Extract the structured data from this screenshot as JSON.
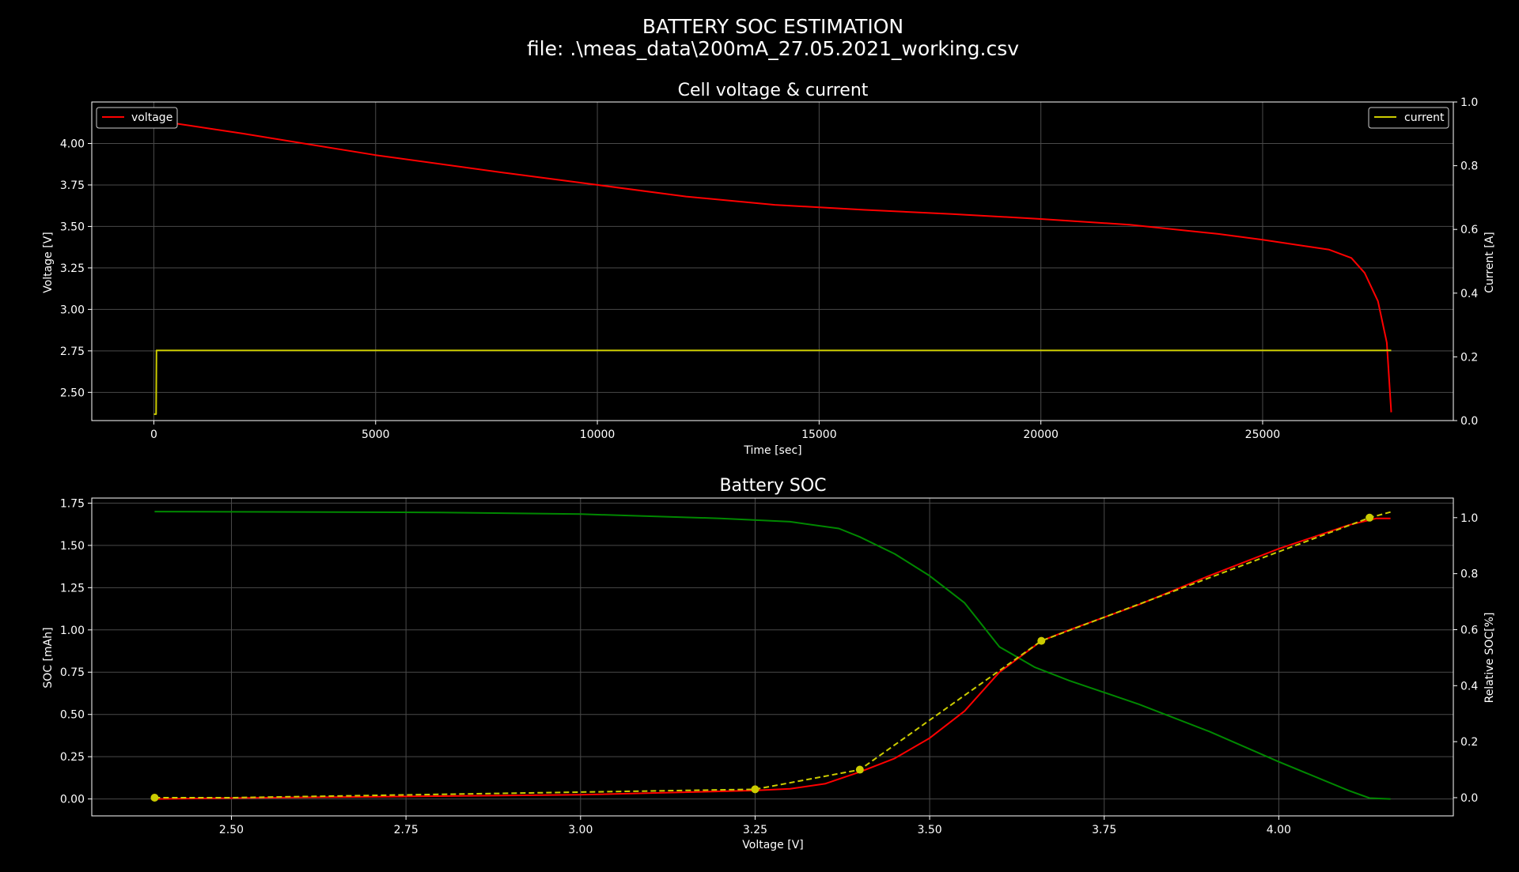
{
  "figure": {
    "title_line1": "BATTERY SOC ESTIMATION",
    "title_line2": "file: .\\meas_data\\200mA_27.05.2021_working.csv",
    "background": "#000000"
  },
  "chart_data": [
    {
      "type": "line",
      "title": "Cell voltage & current",
      "xlabel": "Time [sec]",
      "ylabel": "Voltage [V]",
      "ylabel_right": "Current [A]",
      "xlim": [
        -1400,
        29300
      ],
      "ylim": [
        2.33,
        4.25
      ],
      "ylim_right": [
        0.0,
        1.0
      ],
      "xticks": [
        0,
        5000,
        10000,
        15000,
        20000,
        25000
      ],
      "yticks": [
        2.5,
        2.75,
        3.0,
        3.25,
        3.5,
        3.75,
        4.0
      ],
      "yticks_right": [
        0.0,
        0.2,
        0.4,
        0.6,
        0.8,
        1.0
      ],
      "xtick_labels": [
        "0",
        "5000",
        "10000",
        "15000",
        "20000",
        "25000"
      ],
      "ytick_labels": [
        "2.50",
        "2.75",
        "3.00",
        "3.25",
        "3.50",
        "3.75",
        "4.00"
      ],
      "ytick_labels_right": [
        "0.0",
        "0.2",
        "0.4",
        "0.6",
        "0.8",
        "1.0"
      ],
      "grid": true,
      "legend_left": "upper-left",
      "legend_right": "upper-right",
      "series": [
        {
          "name": "voltage",
          "axis": "left",
          "color": "#ff0000",
          "x": [
            0,
            500,
            2000,
            5000,
            8000,
            10000,
            12000,
            14000,
            16000,
            18000,
            20000,
            22000,
            24000,
            25000,
            26000,
            26500,
            27000,
            27300,
            27600,
            27800,
            27900
          ],
          "y": [
            4.15,
            4.12,
            4.06,
            3.93,
            3.82,
            3.75,
            3.68,
            3.63,
            3.6,
            3.575,
            3.545,
            3.51,
            3.455,
            3.42,
            3.38,
            3.36,
            3.31,
            3.22,
            3.05,
            2.8,
            2.38
          ]
        },
        {
          "name": "current",
          "axis": "right",
          "color": "#cccc00",
          "x": [
            0,
            50,
            60,
            27900
          ],
          "y": [
            0.02,
            0.02,
            0.22,
            0.22
          ]
        }
      ]
    },
    {
      "type": "line",
      "title": "Battery SOC",
      "xlabel": "Voltage [V]",
      "ylabel": "SOC [mAh]",
      "ylabel_right": "Relative SOC[%]",
      "xlim": [
        2.3,
        4.25
      ],
      "ylim": [
        -0.1,
        1.78
      ],
      "ylim_right": [
        -0.065,
        1.07
      ],
      "xticks": [
        2.5,
        2.75,
        3.0,
        3.25,
        3.5,
        3.75,
        4.0
      ],
      "yticks": [
        0.0,
        0.25,
        0.5,
        0.75,
        1.0,
        1.25,
        1.5,
        1.75
      ],
      "yticks_right": [
        0.0,
        0.2,
        0.4,
        0.6,
        0.8,
        1.0
      ],
      "xtick_labels": [
        "2.50",
        "2.75",
        "3.00",
        "3.25",
        "3.50",
        "3.75",
        "4.00"
      ],
      "ytick_labels": [
        "0.00",
        "0.25",
        "0.50",
        "0.75",
        "1.00",
        "1.25",
        "1.50",
        "1.75"
      ],
      "ytick_labels_right": [
        "0.0",
        "0.2",
        "0.4",
        "0.6",
        "0.8",
        "1.0"
      ],
      "grid": true,
      "series": [
        {
          "axis": "left",
          "color": "#008800",
          "x": [
            2.39,
            2.8,
            3.0,
            3.2,
            3.3,
            3.37,
            3.4,
            3.45,
            3.5,
            3.55,
            3.6,
            3.65,
            3.7,
            3.8,
            3.9,
            4.0,
            4.1,
            4.13,
            4.16
          ],
          "y": [
            1.7,
            1.695,
            1.685,
            1.66,
            1.64,
            1.6,
            1.55,
            1.45,
            1.32,
            1.16,
            0.9,
            0.78,
            0.7,
            0.56,
            0.4,
            0.22,
            0.05,
            0.005,
            0.0
          ]
        },
        {
          "axis": "left",
          "color": "#ff0000",
          "x": [
            2.39,
            2.5,
            2.75,
            3.0,
            3.25,
            3.3,
            3.35,
            3.4,
            3.45,
            3.5,
            3.55,
            3.6,
            3.66,
            3.7,
            3.8,
            3.9,
            4.0,
            4.1,
            4.14,
            4.16
          ],
          "y": [
            0.0,
            0.005,
            0.015,
            0.025,
            0.05,
            0.06,
            0.09,
            0.16,
            0.24,
            0.36,
            0.52,
            0.75,
            0.935,
            1.0,
            1.15,
            1.32,
            1.48,
            1.62,
            1.66,
            1.66
          ]
        },
        {
          "axis": "right",
          "color": "#cccc00",
          "dashed": true,
          "markers": [
            0,
            2,
            3,
            4,
            5
          ],
          "x": [
            2.39,
            2.5,
            3.25,
            3.4,
            3.66,
            4.13,
            4.16
          ],
          "y": [
            0.0,
            0.0,
            0.03,
            0.1,
            0.56,
            1.0,
            1.02
          ]
        }
      ]
    }
  ]
}
